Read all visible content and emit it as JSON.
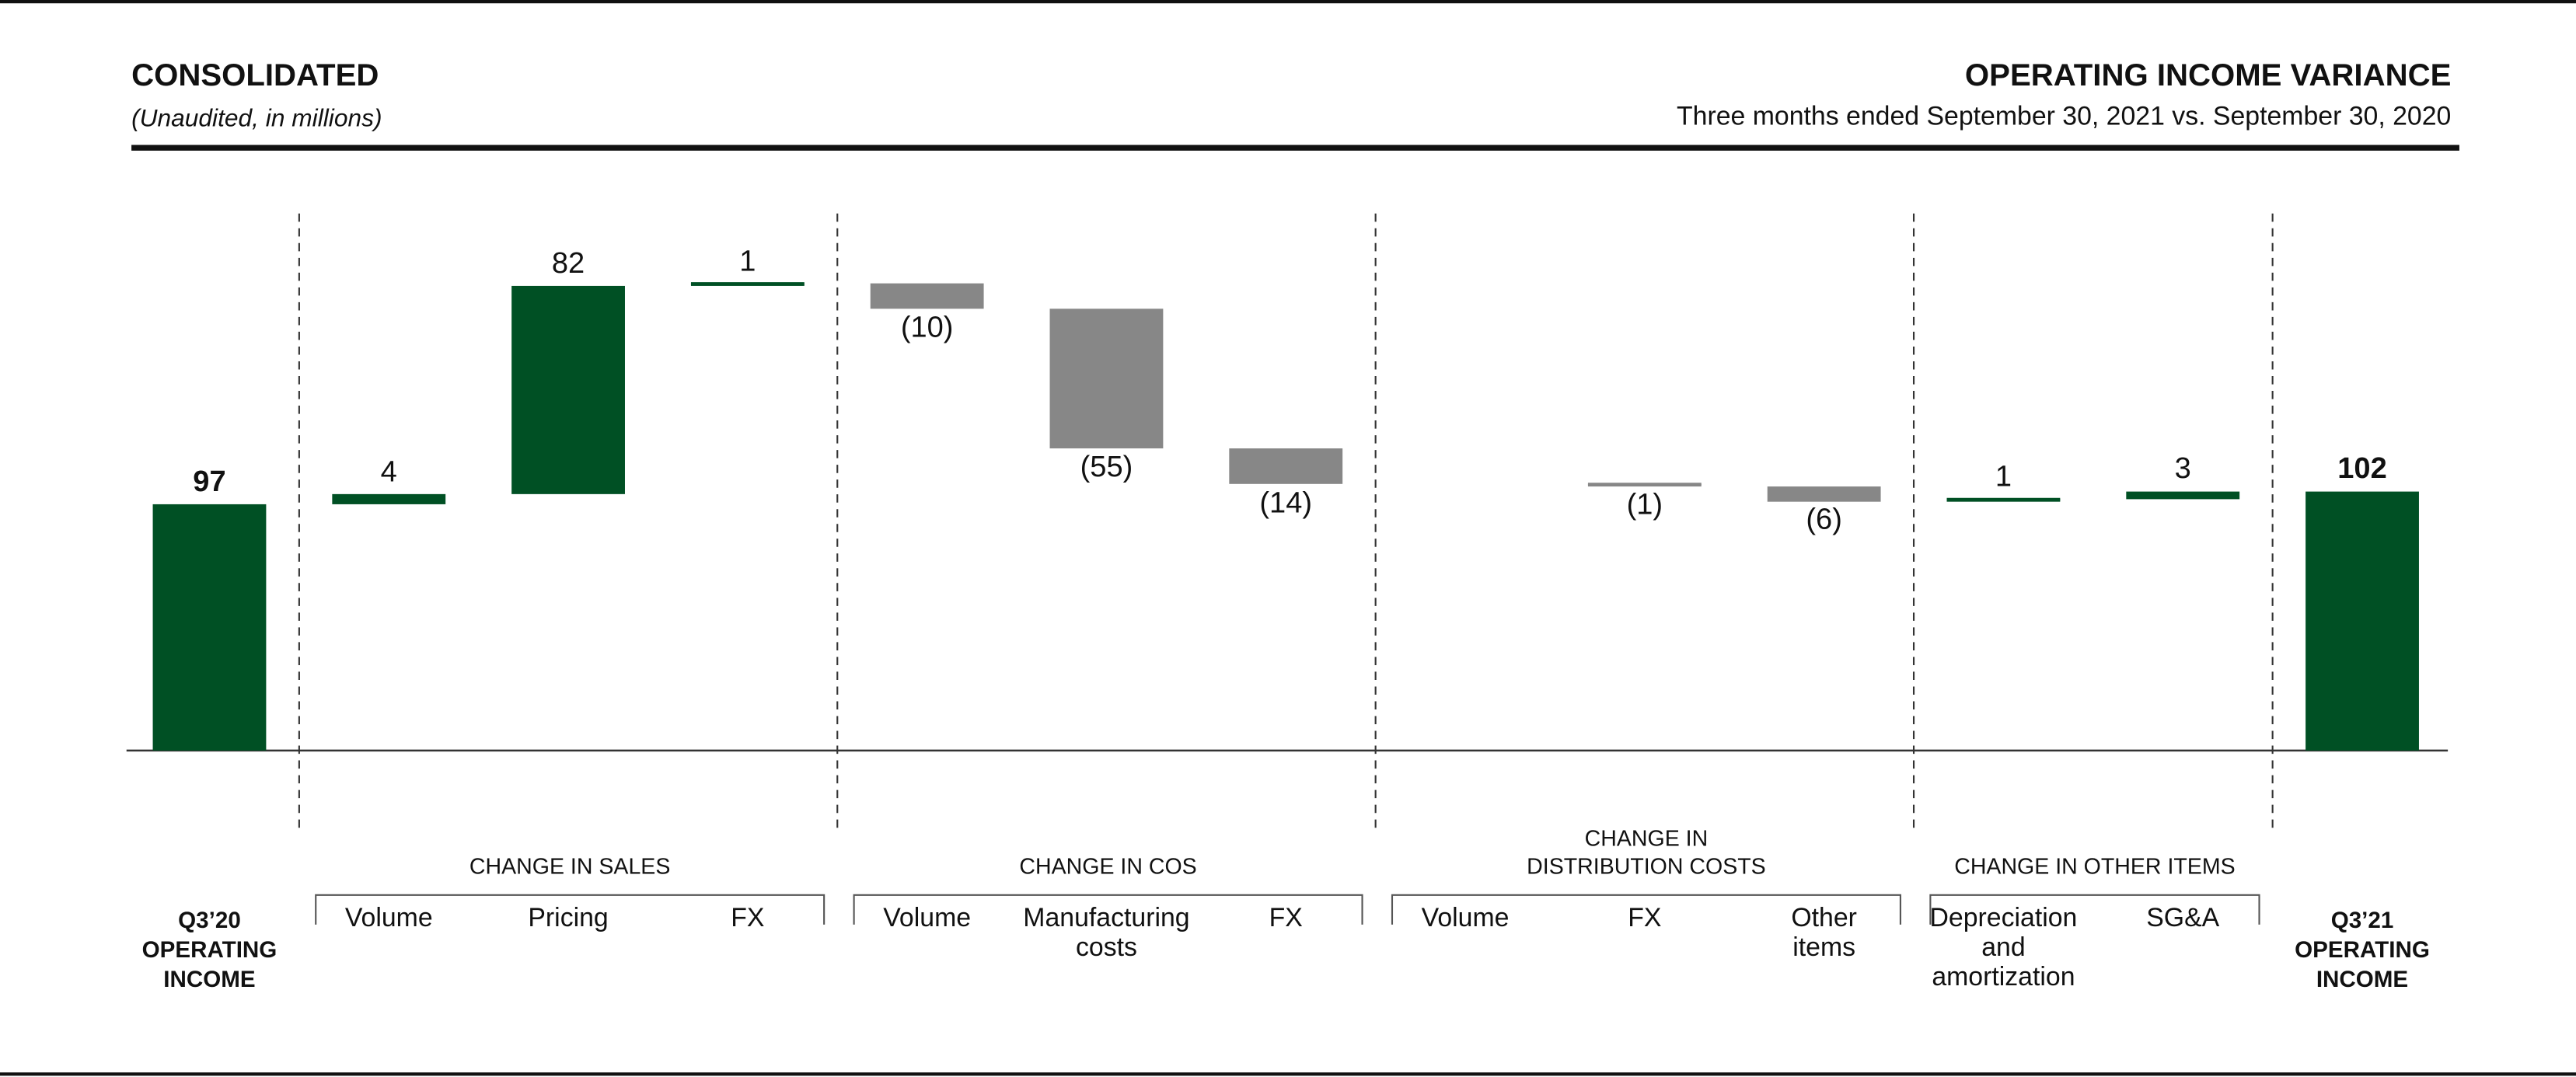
{
  "chart_data": {
    "type": "waterfall",
    "heading": "CONSOLIDATED",
    "note": "(Unaudited, in millions)",
    "title": "OPERATING INCOME VARIANCE",
    "subtitle": "Three months ended September 30, 2021 vs. September 30, 2020",
    "categories": [
      "Q3’20\nOPERATING\nINCOME",
      "Volume",
      "Pricing",
      "FX",
      "Volume",
      "Manufacturing\ncosts",
      "FX",
      "Volume",
      "FX",
      "Other\nitems",
      "Depreciation\nand\namortization",
      "SG&A",
      "Q3’21\nOPERATING\nINCOME"
    ],
    "groups": [
      null,
      "CHANGE IN SALES",
      "CHANGE IN SALES",
      "CHANGE IN SALES",
      "CHANGE IN COS",
      "CHANGE IN COS",
      "CHANGE IN COS",
      "CHANGE IN\nDISTRIBUTION COSTS",
      "CHANGE IN\nDISTRIBUTION COSTS",
      "CHANGE IN\nDISTRIBUTION COSTS",
      "CHANGE IN OTHER ITEMS",
      "CHANGE IN OTHER ITEMS",
      null
    ],
    "measures": [
      "total",
      "relative",
      "relative",
      "relative",
      "relative",
      "relative",
      "relative",
      "relative",
      "relative",
      "relative",
      "relative",
      "relative",
      "total"
    ],
    "values": [
      97,
      4,
      82,
      1,
      -10,
      -55,
      -14,
      0,
      -1,
      -6,
      1,
      3,
      102
    ],
    "value_labels": [
      "97",
      "4",
      "82",
      "1",
      "(10)",
      "(55)",
      "(14)",
      null,
      "(1)",
      "(6)",
      "1",
      "3",
      "102"
    ],
    "colors": {
      "total": "#005024",
      "increase": "#005024",
      "decrease": "#878787"
    }
  }
}
